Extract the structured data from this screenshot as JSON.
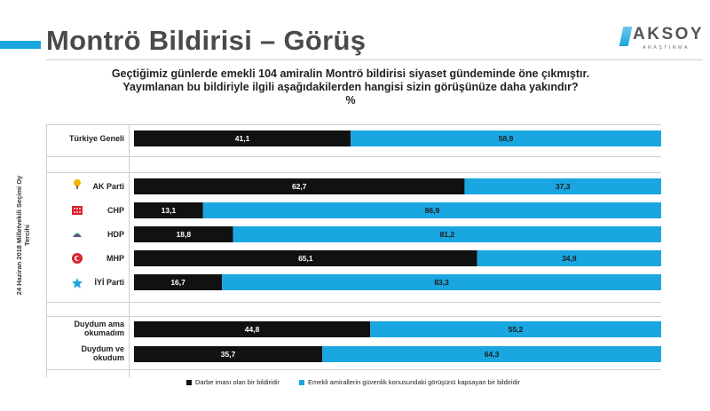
{
  "header": {
    "title": "Montrö Bildirisi – Görüş",
    "logo_text": "AKSOY",
    "logo_sub": "ARAŞTIRMA"
  },
  "question": {
    "line1": "Geçtiğimiz günlerde emekli 104 amiralin Montrö bildirisi siyaset gündeminde öne çıkmıştır.",
    "line2": "Yayımlanan bu bildiriyle ilgili aşağıdakilerden hangisi sizin görüşünüze daha yakındır?",
    "unit": "%"
  },
  "side_label": "24 Haziran 2018 Milletvekili Seçimi Oy Tercihi",
  "colors": {
    "series_a": "#111111",
    "series_b": "#1aa6e0"
  },
  "chart_data": {
    "type": "bar",
    "orientation": "horizontal",
    "stacked": true,
    "categories": [
      "Türkiye Geneli",
      "AK Parti",
      "CHP",
      "HDP",
      "MHP",
      "İYİ Parti",
      "Duydum ama okumadım",
      "Duydum ve okudum"
    ],
    "series": [
      {
        "name": "Darbe iması olan bir bildiridir",
        "values": [
          41.1,
          62.7,
          13.1,
          18.8,
          65.1,
          16.7,
          44.8,
          35.7
        ]
      },
      {
        "name": "Emekli amirallerin güvenlik konusundaki görüşünü kapsayan bir bildiridir",
        "values": [
          58.9,
          37.3,
          86.9,
          81.2,
          34.9,
          83.3,
          55.2,
          64.3
        ]
      }
    ],
    "value_labels_a": [
      "41,1",
      "62,7",
      "13,1",
      "18,8",
      "65,1",
      "16,7",
      "44,8",
      "35,7"
    ],
    "value_labels_b": [
      "58,9",
      "37,3",
      "86,9",
      "81,2",
      "34,9",
      "83,3",
      "55,2",
      "64,3"
    ],
    "xlim": [
      0,
      100
    ],
    "legend_position": "bottom"
  }
}
